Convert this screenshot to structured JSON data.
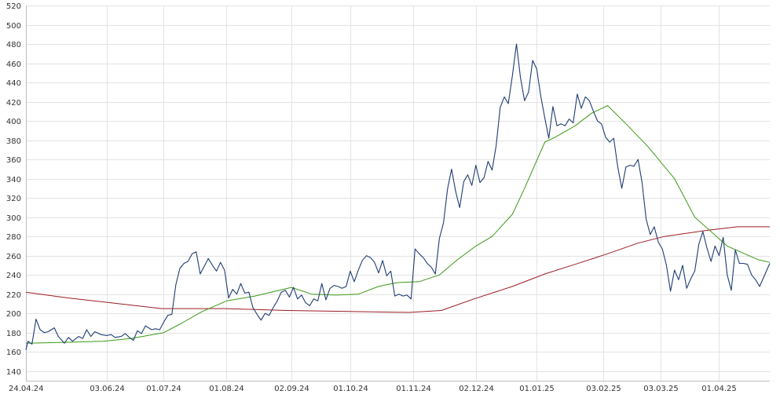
{
  "chart_data": {
    "type": "line",
    "title": "",
    "xlabel": "",
    "ylabel": "",
    "ylim": [
      130,
      520
    ],
    "y_ticks": [
      140,
      160,
      180,
      200,
      220,
      240,
      260,
      280,
      300,
      320,
      340,
      360,
      380,
      400,
      420,
      440,
      460,
      480,
      500,
      520
    ],
    "x_ticks": [
      {
        "label": "24.04.24",
        "date": "2024-04-24"
      },
      {
        "label": "03.06.24",
        "date": "2024-06-03"
      },
      {
        "label": "01.07.24",
        "date": "2024-07-01"
      },
      {
        "label": "01.08.24",
        "date": "2024-08-01"
      },
      {
        "label": "02.09.24",
        "date": "2024-09-02"
      },
      {
        "label": "01.10.24",
        "date": "2024-10-01"
      },
      {
        "label": "01.11.24",
        "date": "2024-11-01"
      },
      {
        "label": "02.12.24",
        "date": "2024-12-02"
      },
      {
        "label": "01.01.25",
        "date": "2025-01-01"
      },
      {
        "label": "03.02.25",
        "date": "2025-02-03"
      },
      {
        "label": "03.03.25",
        "date": "2025-03-03"
      },
      {
        "label": "01.04.25",
        "date": "2025-04-01"
      }
    ],
    "xlim": [
      "2024-04-24",
      "2025-04-26"
    ],
    "grid": true,
    "legend": "none",
    "series": [
      {
        "color": "#1f3d73",
        "points": [
          [
            "2024-04-24",
            162
          ],
          [
            "2024-04-25",
            171
          ],
          [
            "2024-04-27",
            168
          ],
          [
            "2024-04-29",
            194
          ],
          [
            "2024-05-01",
            183
          ],
          [
            "2024-05-03",
            180
          ],
          [
            "2024-05-05",
            181
          ],
          [
            "2024-05-08",
            185
          ],
          [
            "2024-05-10",
            176
          ],
          [
            "2024-05-13",
            169
          ],
          [
            "2024-05-15",
            175
          ],
          [
            "2024-05-17",
            171
          ],
          [
            "2024-05-20",
            176
          ],
          [
            "2024-05-22",
            174
          ],
          [
            "2024-05-24",
            183
          ],
          [
            "2024-05-26",
            176
          ],
          [
            "2024-05-28",
            181
          ],
          [
            "2024-05-31",
            178
          ],
          [
            "2024-06-03",
            177
          ],
          [
            "2024-06-05",
            178
          ],
          [
            "2024-06-07",
            175
          ],
          [
            "2024-06-10",
            176
          ],
          [
            "2024-06-12",
            179
          ],
          [
            "2024-06-14",
            175
          ],
          [
            "2024-06-16",
            172
          ],
          [
            "2024-06-18",
            182
          ],
          [
            "2024-06-20",
            179
          ],
          [
            "2024-06-22",
            187
          ],
          [
            "2024-06-25",
            183
          ],
          [
            "2024-06-27",
            184
          ],
          [
            "2024-06-29",
            183
          ],
          [
            "2024-07-01",
            191
          ],
          [
            "2024-07-03",
            198
          ],
          [
            "2024-07-05",
            199
          ],
          [
            "2024-07-07",
            230
          ],
          [
            "2024-07-09",
            247
          ],
          [
            "2024-07-11",
            252
          ],
          [
            "2024-07-13",
            254
          ],
          [
            "2024-07-15",
            262
          ],
          [
            "2024-07-17",
            264
          ],
          [
            "2024-07-19",
            241
          ],
          [
            "2024-07-21",
            249
          ],
          [
            "2024-07-23",
            257
          ],
          [
            "2024-07-25",
            250
          ],
          [
            "2024-07-27",
            244
          ],
          [
            "2024-07-29",
            253
          ],
          [
            "2024-07-31",
            245
          ],
          [
            "2024-08-02",
            216
          ],
          [
            "2024-08-04",
            225
          ],
          [
            "2024-08-06",
            220
          ],
          [
            "2024-08-08",
            231
          ],
          [
            "2024-08-10",
            221
          ],
          [
            "2024-08-12",
            222
          ],
          [
            "2024-08-14",
            206
          ],
          [
            "2024-08-16",
            199
          ],
          [
            "2024-08-18",
            193
          ],
          [
            "2024-08-20",
            200
          ],
          [
            "2024-08-22",
            198
          ],
          [
            "2024-08-24",
            206
          ],
          [
            "2024-08-26",
            213
          ],
          [
            "2024-08-28",
            222
          ],
          [
            "2024-08-30",
            224
          ],
          [
            "2024-09-01",
            217
          ],
          [
            "2024-09-03",
            227
          ],
          [
            "2024-09-05",
            215
          ],
          [
            "2024-09-07",
            219
          ],
          [
            "2024-09-09",
            211
          ],
          [
            "2024-09-11",
            208
          ],
          [
            "2024-09-13",
            215
          ],
          [
            "2024-09-15",
            213
          ],
          [
            "2024-09-17",
            231
          ],
          [
            "2024-09-19",
            214
          ],
          [
            "2024-09-21",
            226
          ],
          [
            "2024-09-23",
            229
          ],
          [
            "2024-09-25",
            228
          ],
          [
            "2024-09-27",
            226
          ],
          [
            "2024-09-29",
            228
          ],
          [
            "2024-10-01",
            244
          ],
          [
            "2024-10-03",
            233
          ],
          [
            "2024-10-05",
            245
          ],
          [
            "2024-10-07",
            255
          ],
          [
            "2024-10-09",
            260
          ],
          [
            "2024-10-11",
            258
          ],
          [
            "2024-10-13",
            253
          ],
          [
            "2024-10-15",
            242
          ],
          [
            "2024-10-17",
            255
          ],
          [
            "2024-10-19",
            239
          ],
          [
            "2024-10-21",
            244
          ],
          [
            "2024-10-23",
            218
          ],
          [
            "2024-10-25",
            220
          ],
          [
            "2024-10-27",
            218
          ],
          [
            "2024-10-29",
            219
          ],
          [
            "2024-10-31",
            215
          ],
          [
            "2024-11-02",
            267
          ],
          [
            "2024-11-04",
            262
          ],
          [
            "2024-11-06",
            258
          ],
          [
            "2024-11-08",
            252
          ],
          [
            "2024-11-10",
            248
          ],
          [
            "2024-11-12",
            241
          ],
          [
            "2024-11-14",
            278
          ],
          [
            "2024-11-16",
            294
          ],
          [
            "2024-11-18",
            329
          ],
          [
            "2024-11-20",
            350
          ],
          [
            "2024-11-22",
            327
          ],
          [
            "2024-11-24",
            310
          ],
          [
            "2024-11-26",
            337
          ],
          [
            "2024-11-28",
            344
          ],
          [
            "2024-11-30",
            333
          ],
          [
            "2024-12-02",
            354
          ],
          [
            "2024-12-04",
            336
          ],
          [
            "2024-12-06",
            341
          ],
          [
            "2024-12-08",
            358
          ],
          [
            "2024-12-10",
            349
          ],
          [
            "2024-12-12",
            374
          ],
          [
            "2024-12-14",
            414
          ],
          [
            "2024-12-16",
            425
          ],
          [
            "2024-12-18",
            418
          ],
          [
            "2024-12-20",
            447
          ],
          [
            "2024-12-22",
            480
          ],
          [
            "2024-12-24",
            445
          ],
          [
            "2024-12-26",
            421
          ],
          [
            "2024-12-28",
            430
          ],
          [
            "2024-12-30",
            463
          ],
          [
            "2025-01-01",
            454
          ],
          [
            "2025-01-03",
            426
          ],
          [
            "2025-01-05",
            403
          ],
          [
            "2025-01-07",
            382
          ],
          [
            "2025-01-09",
            415
          ],
          [
            "2025-01-11",
            395
          ],
          [
            "2025-01-13",
            397
          ],
          [
            "2025-01-15",
            395
          ],
          [
            "2025-01-17",
            402
          ],
          [
            "2025-01-19",
            398
          ],
          [
            "2025-01-21",
            428
          ],
          [
            "2025-01-23",
            413
          ],
          [
            "2025-01-25",
            425
          ],
          [
            "2025-01-27",
            421
          ],
          [
            "2025-01-29",
            410
          ],
          [
            "2025-01-31",
            400
          ],
          [
            "2025-02-02",
            397
          ],
          [
            "2025-02-04",
            383
          ],
          [
            "2025-02-06",
            378
          ],
          [
            "2025-02-08",
            382
          ],
          [
            "2025-02-10",
            352
          ],
          [
            "2025-02-12",
            330
          ],
          [
            "2025-02-14",
            352
          ],
          [
            "2025-02-16",
            354
          ],
          [
            "2025-02-18",
            353
          ],
          [
            "2025-02-20",
            360
          ],
          [
            "2025-02-22",
            336
          ],
          [
            "2025-02-24",
            298
          ],
          [
            "2025-02-26",
            282
          ],
          [
            "2025-02-28",
            290
          ],
          [
            "2025-03-02",
            274
          ],
          [
            "2025-03-04",
            267
          ],
          [
            "2025-03-06",
            250
          ],
          [
            "2025-03-08",
            223
          ],
          [
            "2025-03-10",
            245
          ],
          [
            "2025-03-12",
            235
          ],
          [
            "2025-03-14",
            250
          ],
          [
            "2025-03-16",
            226
          ],
          [
            "2025-03-18",
            236
          ],
          [
            "2025-03-20",
            244
          ],
          [
            "2025-03-22",
            272
          ],
          [
            "2025-03-24",
            285
          ],
          [
            "2025-03-26",
            268
          ],
          [
            "2025-03-28",
            254
          ],
          [
            "2025-03-30",
            270
          ],
          [
            "2025-04-01",
            260
          ],
          [
            "2025-04-03",
            279
          ],
          [
            "2025-04-05",
            240
          ],
          [
            "2025-04-07",
            224
          ],
          [
            "2025-04-09",
            266
          ],
          [
            "2025-04-11",
            252
          ],
          [
            "2025-04-13",
            252
          ],
          [
            "2025-04-15",
            251
          ],
          [
            "2025-04-17",
            240
          ],
          [
            "2025-04-19",
            235
          ],
          [
            "2025-04-21",
            228
          ],
          [
            "2025-04-26",
            252
          ]
        ]
      },
      {
        "color": "#3a9a14",
        "points": [
          [
            "2024-04-24",
            169
          ],
          [
            "2024-05-15",
            170
          ],
          [
            "2024-06-01",
            171
          ],
          [
            "2024-06-15",
            174
          ],
          [
            "2024-07-01",
            180
          ],
          [
            "2024-07-10",
            190
          ],
          [
            "2024-07-20",
            202
          ],
          [
            "2024-08-01",
            213
          ],
          [
            "2024-08-15",
            218
          ],
          [
            "2024-08-25",
            223
          ],
          [
            "2024-09-02",
            227
          ],
          [
            "2024-09-12",
            220
          ],
          [
            "2024-09-24",
            219
          ],
          [
            "2024-10-05",
            220
          ],
          [
            "2024-10-15",
            228
          ],
          [
            "2024-10-24",
            232
          ],
          [
            "2024-11-04",
            233
          ],
          [
            "2024-11-14",
            240
          ],
          [
            "2024-11-23",
            256
          ],
          [
            "2024-12-02",
            270
          ],
          [
            "2024-12-10",
            280
          ],
          [
            "2024-12-20",
            303
          ],
          [
            "2024-12-26",
            330
          ],
          [
            "2025-01-05",
            378
          ],
          [
            "2025-01-10",
            383
          ],
          [
            "2025-01-20",
            395
          ],
          [
            "2025-01-28",
            408
          ],
          [
            "2025-02-05",
            416
          ],
          [
            "2025-02-15",
            395
          ],
          [
            "2025-02-25",
            373
          ],
          [
            "2025-03-10",
            340
          ],
          [
            "2025-03-20",
            300
          ],
          [
            "2025-04-05",
            270
          ],
          [
            "2025-04-20",
            256
          ],
          [
            "2025-04-26",
            253
          ]
        ]
      },
      {
        "color": "#9c1c24",
        "points": [
          [
            "2024-04-24",
            222
          ],
          [
            "2024-05-15",
            216
          ],
          [
            "2024-06-05",
            211
          ],
          [
            "2024-06-30",
            205
          ],
          [
            "2024-07-31",
            205
          ],
          [
            "2024-08-31",
            203
          ],
          [
            "2024-09-30",
            202
          ],
          [
            "2024-10-30",
            201
          ],
          [
            "2024-11-15",
            203
          ],
          [
            "2024-12-01",
            215
          ],
          [
            "2024-12-20",
            228
          ],
          [
            "2025-01-05",
            241
          ],
          [
            "2025-01-20",
            251
          ],
          [
            "2025-02-05",
            262
          ],
          [
            "2025-02-20",
            273
          ],
          [
            "2025-03-05",
            280
          ],
          [
            "2025-03-25",
            286
          ],
          [
            "2025-04-10",
            290
          ],
          [
            "2025-04-26",
            290
          ]
        ]
      }
    ]
  }
}
